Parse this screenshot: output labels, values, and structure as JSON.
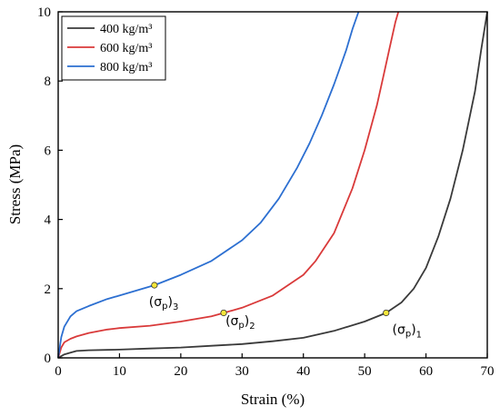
{
  "chart_data": {
    "type": "line",
    "xlabel": "Strain (%)",
    "ylabel": "Stress (MPa)",
    "xlim": [
      0,
      70
    ],
    "ylim": [
      0,
      10
    ],
    "xticks": [
      0,
      10,
      20,
      30,
      40,
      50,
      60,
      70
    ],
    "yticks": [
      0,
      2,
      4,
      6,
      8,
      10
    ],
    "grid": false,
    "legend_position": "top-left",
    "series": [
      {
        "name": "400 kg/m³",
        "color": "#3a3a3a",
        "x": [
          0,
          1,
          2,
          3,
          5,
          8,
          10,
          15,
          20,
          25,
          30,
          35,
          40,
          45,
          50,
          53.5,
          56,
          58,
          60,
          62,
          64,
          66,
          68,
          69,
          70
        ],
        "y": [
          0,
          0.1,
          0.15,
          0.2,
          0.22,
          0.23,
          0.24,
          0.27,
          0.3,
          0.35,
          0.4,
          0.48,
          0.58,
          0.78,
          1.05,
          1.3,
          1.6,
          2.0,
          2.6,
          3.5,
          4.6,
          6.0,
          7.7,
          8.9,
          10.0
        ]
      },
      {
        "name": "600 kg/m³",
        "color": "#d93a3a",
        "x": [
          0,
          0.5,
          1,
          2,
          3,
          5,
          8,
          10,
          15,
          20,
          25,
          27,
          30,
          35,
          40,
          42,
          45,
          48,
          50,
          52,
          53,
          54,
          55,
          55.5
        ],
        "y": [
          0,
          0.3,
          0.45,
          0.55,
          0.62,
          0.72,
          0.82,
          0.86,
          0.93,
          1.05,
          1.2,
          1.3,
          1.45,
          1.8,
          2.4,
          2.8,
          3.6,
          4.9,
          6.0,
          7.3,
          8.1,
          8.9,
          9.7,
          10.0
        ]
      },
      {
        "name": "800 kg/m³",
        "color": "#2c6fd1",
        "x": [
          0,
          0.5,
          1,
          2,
          3,
          5,
          8,
          10,
          15.7,
          20,
          25,
          30,
          33,
          36,
          39,
          41,
          43,
          45,
          46,
          47,
          48,
          49
        ],
        "y": [
          0,
          0.6,
          0.9,
          1.2,
          1.35,
          1.5,
          1.7,
          1.8,
          2.1,
          2.4,
          2.8,
          3.4,
          3.9,
          4.6,
          5.5,
          6.2,
          7.0,
          7.9,
          8.4,
          8.9,
          9.5,
          10.0
        ]
      }
    ],
    "annotations": [
      {
        "label": "(σp)3",
        "main": "(σ",
        "sub1": "p",
        "close": ")",
        "sub2": "3",
        "x": 15.7,
        "y": 2.1,
        "marker_color": "#f5e63a",
        "text_x": 14.8,
        "text_y": 1.5
      },
      {
        "label": "(σp)2",
        "main": "(σ",
        "sub1": "p",
        "close": ")",
        "sub2": "2",
        "x": 27,
        "y": 1.3,
        "marker_color": "#f5e63a",
        "text_x": 27.3,
        "text_y": 0.95
      },
      {
        "label": "(σp)1",
        "main": "(σ",
        "sub1": "p",
        "close": ")",
        "sub2": "1",
        "x": 53.5,
        "y": 1.3,
        "marker_color": "#f5e63a",
        "text_x": 54.5,
        "text_y": 0.7
      }
    ]
  }
}
